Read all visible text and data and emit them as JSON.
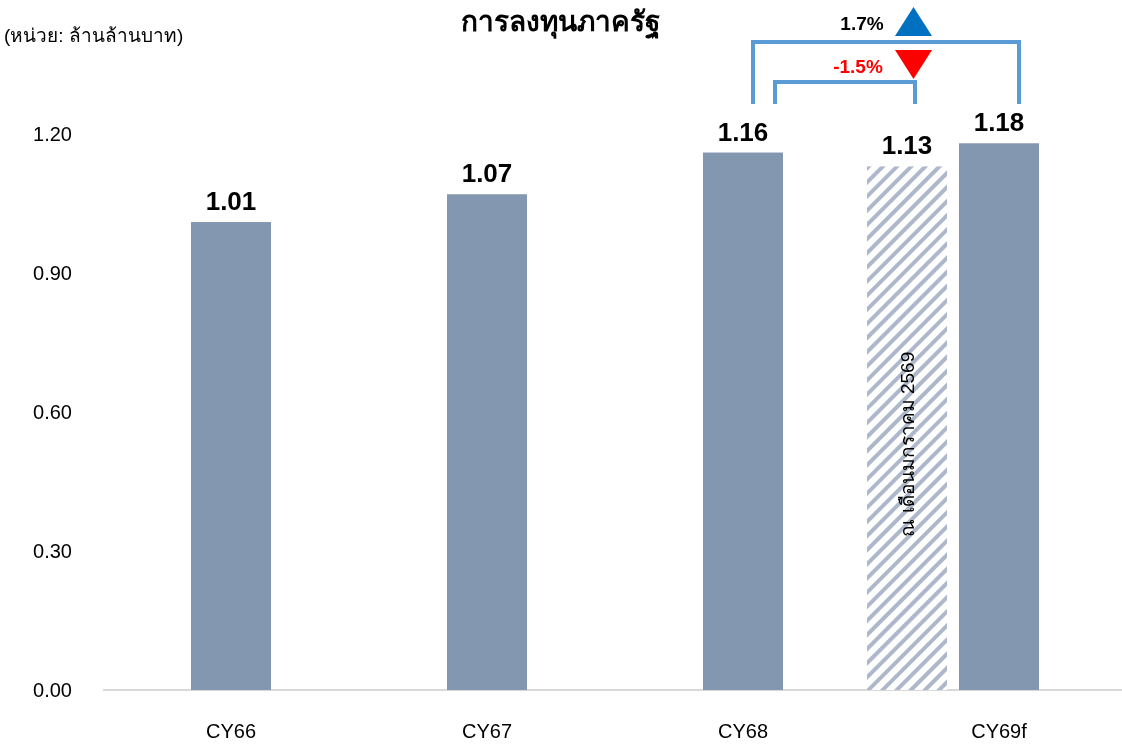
{
  "chart_data": {
    "type": "bar",
    "title": "การลงทุนภาครัฐ",
    "ylabel": "(หน่วย: ล้านล้านบาท)",
    "categories": [
      "CY66",
      "CY67",
      "CY68",
      "CY69f"
    ],
    "series": [
      {
        "color": "#8497b0",
        "values": [
          1.01,
          1.07,
          1.16,
          1.18
        ]
      },
      {
        "color": "#adb9ca",
        "values": [
          null,
          null,
          null,
          1.13
        ]
      }
    ],
    "ylim": [
      0,
      1.2
    ],
    "yticks": [
      {
        "value": 0,
        "label": "0.00"
      },
      {
        "value": 0.3,
        "label": "0.30"
      },
      {
        "value": 0.6,
        "label": "0.60"
      },
      {
        "value": 0.9,
        "label": "0.90"
      },
      {
        "value": 1.2,
        "label": "1.20"
      }
    ],
    "data_labels": true,
    "annotations": [
      "ณ เดือนมกราคม 2569",
      "1.7%",
      "-1.5%"
    ]
  }
}
